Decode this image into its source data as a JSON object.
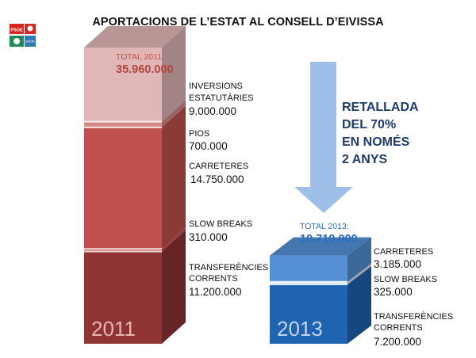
{
  "logo": {
    "psoe": "PSOE",
    "pacte": "pacte"
  },
  "title": "APORTACIONS DE L’ESTAT AL CONSELL D’EIVISSA",
  "note": [
    "RETALLADA",
    "DEL 70%",
    "EN NOMÉS",
    "2 ANYS"
  ],
  "colors": {
    "t2011": "#c0504d",
    "t2013": "#1f64b0",
    "arrow": "#9ec0e8"
  },
  "chart_data": [
    {
      "type": "bar",
      "stacked": true,
      "x": "2011",
      "total_label": "TOTAL 2011:",
      "total": 35960000,
      "total_text": "35.960.000",
      "year_text": "2011",
      "segments": [
        {
          "name": "TRANSFERÈNCIES CORRENTS",
          "value": 11200000,
          "text": "11.200.000",
          "label_lines": [
            "TRANSFERÈNCIES",
            "CORRENTS"
          ],
          "color": "#8e3432"
        },
        {
          "name": "SLOW BREAKS",
          "value": 310000,
          "text": "310.000",
          "label_lines": [
            "SLOW BREAKS"
          ],
          "color": "#c75450"
        },
        {
          "name": "CARRETERES",
          "value": 14750000,
          "text": "14.750.000",
          "label_lines": [
            "CARRETERES"
          ],
          "color": "#c0504d"
        },
        {
          "name": "PIOS",
          "value": 700000,
          "text": "700.000",
          "label_lines": [
            "PIOS"
          ],
          "color": "#d88a88"
        },
        {
          "name": "INVERSIONS ESTATUTÀRIES",
          "value": 9000000,
          "text": "9.000.000",
          "label_lines": [
            "INVERSIONS",
            "ESTATUTÀRIES"
          ],
          "color": "#e0b7b6"
        }
      ]
    },
    {
      "type": "bar",
      "stacked": true,
      "x": "2013",
      "total_label": "TOTAL 2013:",
      "total": 10710000,
      "total_text": "10.710.000",
      "year_text": "2013",
      "segments": [
        {
          "name": "TRANSFERÈNCIES CORRENTS",
          "value": 7200000,
          "text": "7.200.000",
          "label_lines": [
            "TRANSFERÈNCIES",
            "CORRENTS"
          ],
          "color": "#1f64b0"
        },
        {
          "name": "SLOW BREAKS",
          "value": 325000,
          "text": "325.000",
          "label_lines": [
            "SLOW BREAKS"
          ],
          "color": "#d7e4f4"
        },
        {
          "name": "CARRETERES",
          "value": 3185000,
          "text": "3.185.000",
          "label_lines": [
            "CARRETERES"
          ],
          "color": "#5590d6"
        }
      ]
    }
  ]
}
